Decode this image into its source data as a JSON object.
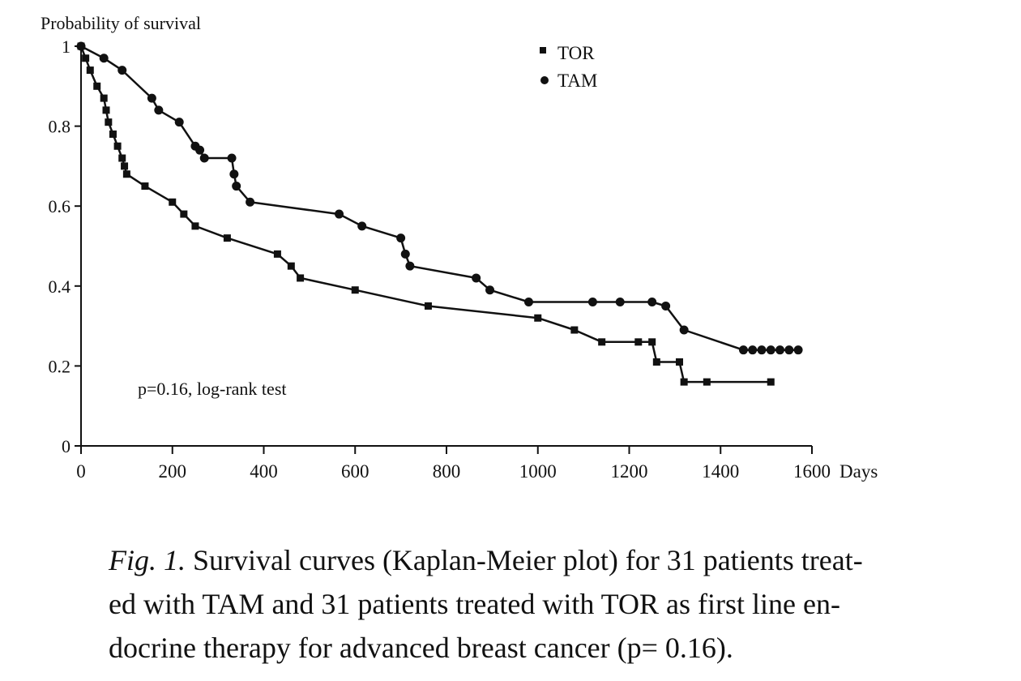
{
  "chart_data": {
    "type": "line",
    "ylabel": "Probability of survival",
    "xunit": "Days",
    "xlim": [
      0,
      1600
    ],
    "ylim": [
      0,
      1
    ],
    "xticks": [
      0,
      200,
      400,
      600,
      800,
      1000,
      1200,
      1400,
      1600
    ],
    "xtick_labels": [
      "0",
      "200",
      "400",
      "600",
      "800",
      "1000",
      "1200",
      "1400",
      "1600"
    ],
    "yticks": [
      0,
      0.2,
      0.4,
      0.6,
      0.8,
      1
    ],
    "ytick_labels": [
      "0",
      "0.2",
      "0.4",
      "0.6",
      "0.8",
      "1"
    ],
    "legend_position": "top-right",
    "annotation": "p=0.16, log-rank test",
    "series": [
      {
        "name": "TOR",
        "marker": "square",
        "color": "#111111",
        "x": [
          0,
          10,
          20,
          35,
          50,
          55,
          60,
          70,
          80,
          90,
          95,
          100,
          140,
          200,
          225,
          250,
          320,
          430,
          460,
          480,
          600,
          760,
          1000,
          1080,
          1140,
          1220,
          1250,
          1260,
          1310,
          1320,
          1370,
          1510
        ],
        "y": [
          1.0,
          0.97,
          0.94,
          0.9,
          0.87,
          0.84,
          0.81,
          0.78,
          0.75,
          0.72,
          0.7,
          0.68,
          0.65,
          0.61,
          0.58,
          0.55,
          0.52,
          0.48,
          0.45,
          0.42,
          0.39,
          0.35,
          0.32,
          0.29,
          0.26,
          0.26,
          0.26,
          0.21,
          0.21,
          0.16,
          0.16,
          0.16
        ]
      },
      {
        "name": "TAM",
        "marker": "circle",
        "color": "#111111",
        "x": [
          0,
          50,
          90,
          155,
          170,
          215,
          250,
          260,
          270,
          330,
          335,
          340,
          370,
          565,
          615,
          700,
          710,
          720,
          865,
          895,
          980,
          1120,
          1180,
          1250,
          1280,
          1320,
          1450,
          1470,
          1490,
          1510,
          1530,
          1550,
          1570
        ],
        "y": [
          1.0,
          0.97,
          0.94,
          0.87,
          0.84,
          0.81,
          0.75,
          0.74,
          0.72,
          0.72,
          0.68,
          0.65,
          0.61,
          0.58,
          0.55,
          0.52,
          0.48,
          0.45,
          0.42,
          0.39,
          0.36,
          0.36,
          0.36,
          0.36,
          0.35,
          0.29,
          0.24,
          0.24,
          0.24,
          0.24,
          0.24,
          0.24,
          0.24
        ]
      }
    ]
  },
  "caption": {
    "label": "Fig. 1.",
    "lines": [
      "Survival curves (Kaplan-Meier plot) for 31 patients treat-",
      "ed with TAM and 31 patients treated with TOR as first line en-",
      "docrine therapy for advanced breast cancer (p= 0.16)."
    ]
  }
}
